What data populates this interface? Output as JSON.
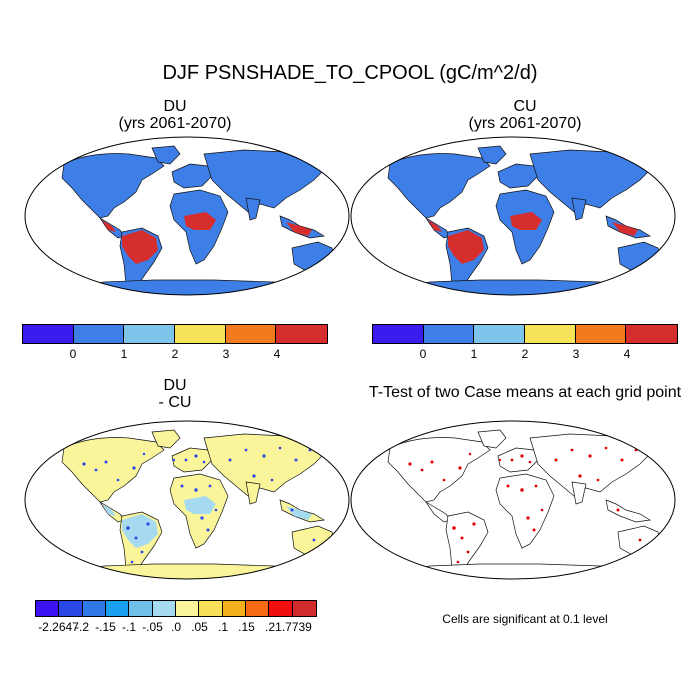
{
  "title": "DJF PSNSHADE_TO_CPOOL (gC/m^2/d)",
  "panels": {
    "du": {
      "title_line1": "DU",
      "title_line2": "(yrs 2061-2070)"
    },
    "cu": {
      "title_line1": "CU",
      "title_line2": "(yrs 2061-2070)"
    },
    "diff": {
      "title_line1": "DU",
      "title_line2": "- CU"
    },
    "ttest": {
      "title": "T-Test of two Case means at each grid point",
      "note": "Cells are significant at 0.1 level"
    }
  },
  "colorbar_main": {
    "colors": [
      "#3b1cf0",
      "#3d7fe6",
      "#7fc4ea",
      "#f7e35a",
      "#f47a1e",
      "#d62d2d"
    ],
    "labels": [
      "0",
      "1",
      "2",
      "3",
      "4"
    ]
  },
  "colorbar_diff": {
    "colors": [
      "#3c12f2",
      "#2a48e6",
      "#2f78e8",
      "#19a0f0",
      "#6fbfe8",
      "#a6daf0",
      "#faf59a",
      "#f8e05a",
      "#f5b01e",
      "#f56a12",
      "#f00e0e",
      "#d12b2b"
    ],
    "labels": [
      "-2.2647",
      "-.2",
      "-.15",
      "-.1",
      "-.05",
      ".0",
      ".05",
      ".1",
      ".15",
      ".2",
      "1.7739"
    ]
  },
  "map_colors": {
    "ocean": "#ffffff",
    "du_base": "#3d7fe6",
    "du_tropics": "#d62d2d",
    "diff_base": "#faf59a",
    "diff_light_blue": "#a6daf0",
    "diff_blue": "#2a48e6",
    "ttest_sig": "#e00000"
  }
}
